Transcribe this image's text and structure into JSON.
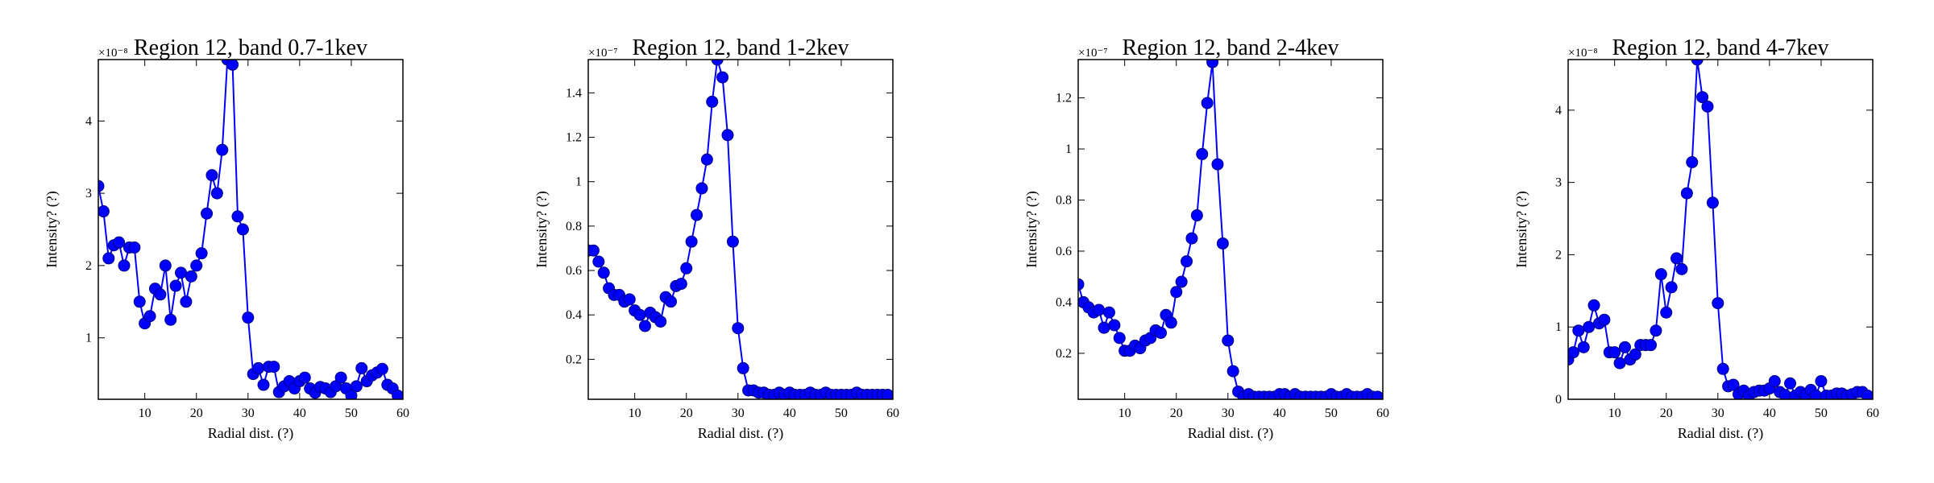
{
  "colors": {
    "series": "#0000ff",
    "marker_edge": "#000080",
    "axes": "#000000",
    "background": "#ffffff"
  },
  "chart_data": [
    {
      "type": "line",
      "title": "Region 12, band 0.7-1kev",
      "xlabel": "Radial dist. (?)",
      "ylabel": "Intensity? (?)",
      "y_offset_label": "×10⁻⁸",
      "xlim": [
        1,
        60
      ],
      "ylim": [
        0.15,
        4.85
      ],
      "xticks": [
        10,
        20,
        30,
        40,
        50,
        60
      ],
      "yticks": [
        1,
        2,
        3,
        4
      ],
      "grid": false,
      "markers": true,
      "series": [
        {
          "x": [
            1,
            2,
            3,
            4,
            5,
            6,
            7,
            8,
            9,
            10,
            11,
            12,
            13,
            14,
            15,
            16,
            17,
            18,
            19,
            20,
            21,
            22,
            23,
            24,
            25,
            26,
            27,
            28,
            29,
            30,
            31,
            32,
            33,
            34,
            35,
            36,
            37,
            38,
            39,
            40,
            41,
            42,
            43,
            44,
            45,
            46,
            47,
            48,
            49,
            50,
            51,
            52,
            53,
            54,
            55,
            56,
            57,
            58,
            59
          ],
          "y": [
            3.1,
            2.75,
            2.1,
            2.28,
            2.32,
            2.0,
            2.25,
            2.25,
            1.5,
            1.2,
            1.3,
            1.68,
            1.6,
            2.0,
            1.25,
            1.72,
            1.9,
            1.5,
            1.85,
            2.0,
            2.17,
            2.72,
            3.25,
            3.0,
            3.6,
            4.85,
            4.78,
            2.68,
            2.5,
            1.28,
            0.5,
            0.58,
            0.35,
            0.6,
            0.6,
            0.25,
            0.33,
            0.4,
            0.3,
            0.4,
            0.45,
            0.3,
            0.24,
            0.32,
            0.3,
            0.25,
            0.33,
            0.45,
            0.3,
            0.2,
            0.33,
            0.58,
            0.4,
            0.48,
            0.52,
            0.57,
            0.35,
            0.3,
            0.2
          ]
        }
      ]
    },
    {
      "type": "line",
      "title": "Region 12, band 1-2kev",
      "xlabel": "Radial dist. (?)",
      "ylabel": "Intensity? (?)",
      "y_offset_label": "×10⁻⁷",
      "xlim": [
        1,
        60
      ],
      "ylim": [
        0.02,
        1.55
      ],
      "xticks": [
        10,
        20,
        30,
        40,
        50,
        60
      ],
      "yticks": [
        0.2,
        0.4,
        0.6,
        0.8,
        1.0,
        1.2,
        1.4
      ],
      "grid": false,
      "markers": true,
      "series": [
        {
          "x": [
            1,
            2,
            3,
            4,
            5,
            6,
            7,
            8,
            9,
            10,
            11,
            12,
            13,
            14,
            15,
            16,
            17,
            18,
            19,
            20,
            21,
            22,
            23,
            24,
            25,
            26,
            27,
            28,
            29,
            30,
            31,
            32,
            33,
            34,
            35,
            36,
            37,
            38,
            39,
            40,
            41,
            42,
            43,
            44,
            45,
            46,
            47,
            48,
            49,
            50,
            51,
            52,
            53,
            54,
            55,
            56,
            57,
            58,
            59
          ],
          "y": [
            0.69,
            0.69,
            0.64,
            0.59,
            0.52,
            0.49,
            0.49,
            0.46,
            0.47,
            0.42,
            0.4,
            0.35,
            0.41,
            0.39,
            0.37,
            0.48,
            0.46,
            0.53,
            0.54,
            0.61,
            0.73,
            0.85,
            0.97,
            1.1,
            1.36,
            1.55,
            1.47,
            1.21,
            0.73,
            0.34,
            0.16,
            0.06,
            0.06,
            0.05,
            0.05,
            0.04,
            0.04,
            0.05,
            0.04,
            0.05,
            0.04,
            0.04,
            0.04,
            0.05,
            0.04,
            0.04,
            0.05,
            0.04,
            0.04,
            0.04,
            0.04,
            0.04,
            0.05,
            0.04,
            0.04,
            0.04,
            0.04,
            0.04,
            0.04
          ]
        }
      ]
    },
    {
      "type": "line",
      "title": "Region 12, band 2-4kev",
      "xlabel": "Radial dist. (?)",
      "ylabel": "Intensity? (?)",
      "y_offset_label": "×10⁻⁷",
      "xlim": [
        1,
        60
      ],
      "ylim": [
        0.02,
        1.35
      ],
      "xticks": [
        10,
        20,
        30,
        40,
        50,
        60
      ],
      "yticks": [
        0.2,
        0.4,
        0.6,
        0.8,
        1.0,
        1.2
      ],
      "grid": false,
      "markers": true,
      "series": [
        {
          "x": [
            1,
            2,
            3,
            4,
            5,
            6,
            7,
            8,
            9,
            10,
            11,
            12,
            13,
            14,
            15,
            16,
            17,
            18,
            19,
            20,
            21,
            22,
            23,
            24,
            25,
            26,
            27,
            28,
            29,
            30,
            31,
            32,
            33,
            34,
            35,
            36,
            37,
            38,
            39,
            40,
            41,
            42,
            43,
            44,
            45,
            46,
            47,
            48,
            49,
            50,
            51,
            52,
            53,
            54,
            55,
            56,
            57,
            58,
            59
          ],
          "y": [
            0.47,
            0.4,
            0.38,
            0.36,
            0.37,
            0.3,
            0.36,
            0.31,
            0.26,
            0.21,
            0.21,
            0.23,
            0.22,
            0.25,
            0.26,
            0.29,
            0.28,
            0.35,
            0.32,
            0.44,
            0.48,
            0.56,
            0.65,
            0.74,
            0.98,
            1.18,
            1.34,
            0.94,
            0.63,
            0.25,
            0.13,
            0.05,
            0.03,
            0.04,
            0.03,
            0.03,
            0.03,
            0.03,
            0.03,
            0.04,
            0.04,
            0.03,
            0.04,
            0.03,
            0.03,
            0.03,
            0.03,
            0.03,
            0.03,
            0.04,
            0.03,
            0.03,
            0.04,
            0.03,
            0.03,
            0.03,
            0.04,
            0.03,
            0.03
          ]
        }
      ]
    },
    {
      "type": "line",
      "title": "Region 12, band 4-7kev",
      "xlabel": "Radial dist. (?)",
      "ylabel": "Intensity? (?)",
      "y_offset_label": "×10⁻⁸",
      "xlim": [
        1,
        60
      ],
      "ylim": [
        0,
        4.7
      ],
      "xticks": [
        10,
        20,
        30,
        40,
        50,
        60
      ],
      "yticks": [
        0,
        1,
        2,
        3,
        4
      ],
      "grid": false,
      "markers": true,
      "series": [
        {
          "x": [
            1,
            2,
            3,
            4,
            5,
            6,
            7,
            8,
            9,
            10,
            11,
            12,
            13,
            14,
            15,
            16,
            17,
            18,
            19,
            20,
            21,
            22,
            23,
            24,
            25,
            26,
            27,
            28,
            29,
            30,
            31,
            32,
            33,
            34,
            35,
            36,
            37,
            38,
            39,
            40,
            41,
            42,
            43,
            44,
            45,
            46,
            47,
            48,
            49,
            50,
            51,
            52,
            53,
            54,
            55,
            56,
            57,
            58,
            59
          ],
          "y": [
            0.55,
            0.65,
            0.95,
            0.72,
            1.0,
            1.3,
            1.05,
            1.1,
            0.65,
            0.65,
            0.5,
            0.72,
            0.55,
            0.62,
            0.75,
            0.75,
            0.75,
            0.95,
            1.73,
            1.2,
            1.55,
            1.95,
            1.8,
            2.85,
            3.28,
            4.7,
            4.18,
            4.05,
            2.72,
            1.33,
            0.42,
            0.18,
            0.2,
            0.07,
            0.12,
            0.05,
            0.1,
            0.12,
            0.12,
            0.15,
            0.25,
            0.1,
            0.06,
            0.22,
            0.05,
            0.1,
            0.06,
            0.13,
            0.05,
            0.25,
            0.05,
            0.05,
            0.08,
            0.08,
            0.05,
            0.07,
            0.1,
            0.1,
            0.05
          ]
        }
      ]
    }
  ]
}
